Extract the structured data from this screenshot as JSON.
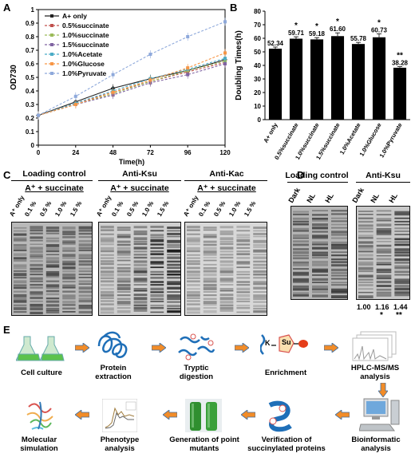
{
  "panels": [
    "A",
    "B",
    "C",
    "D",
    "E"
  ],
  "chart_data": [
    {
      "type": "line",
      "ylabel": "OD730",
      "xlabel": "Time(h)",
      "x": [
        0,
        24,
        48,
        72,
        96,
        120
      ],
      "xlim": [
        0,
        120
      ],
      "ylim": [
        0,
        1.0
      ],
      "yticks": [
        "0",
        "0.1",
        "0.2",
        "0.3",
        "0.4",
        "0.5",
        "0.6",
        "0.7",
        "0.8",
        "0.9",
        "1"
      ],
      "xticks": [
        "0",
        "24",
        "48",
        "72",
        "96",
        "120"
      ],
      "legend_position": "top-left",
      "series": [
        {
          "name": "A+ only",
          "color": "#222222",
          "values": [
            0.22,
            0.32,
            0.42,
            0.49,
            0.55,
            0.63
          ]
        },
        {
          "name": "0.5%succinate",
          "color": "#c0504d",
          "values": [
            0.22,
            0.31,
            0.39,
            0.47,
            0.54,
            0.61
          ]
        },
        {
          "name": "1.0%succinate",
          "color": "#9bbb59",
          "values": [
            0.22,
            0.3,
            0.38,
            0.47,
            0.55,
            0.62
          ]
        },
        {
          "name": "1.5%succinate",
          "color": "#8064a2",
          "values": [
            0.22,
            0.3,
            0.37,
            0.46,
            0.52,
            0.6
          ]
        },
        {
          "name": "1.0%Acetate",
          "color": "#4bacc6",
          "values": [
            0.22,
            0.31,
            0.4,
            0.49,
            0.56,
            0.64
          ]
        },
        {
          "name": "1.0%Glucose",
          "color": "#f79646",
          "values": [
            0.22,
            0.3,
            0.39,
            0.48,
            0.57,
            0.68
          ]
        },
        {
          "name": "1.0%Pyruvate",
          "color": "#8ea9db",
          "values": [
            0.22,
            0.36,
            0.52,
            0.67,
            0.8,
            0.91
          ]
        }
      ]
    },
    {
      "type": "bar",
      "ylabel": "Doubling Times(h)",
      "ylim": [
        0,
        80
      ],
      "yticks": [
        "0",
        "10",
        "20",
        "30",
        "40",
        "50",
        "60",
        "70",
        "80"
      ],
      "categories": [
        "A+ only",
        "0.5%succinate",
        "1.0%succinate",
        "1.5%succinate",
        "1.0%Acetate",
        "1.0%Glucose",
        "1.0%Pyruvate"
      ],
      "values": [
        52.34,
        59.71,
        59.18,
        61.6,
        55.78,
        60.73,
        38.28
      ],
      "labels": [
        "52.34",
        "59.71",
        "59.18",
        "61.60",
        "55.78",
        "60.73",
        "38.28"
      ],
      "errors": [
        1.2,
        1.4,
        1.3,
        2.4,
        1.2,
        2.6,
        0.8
      ],
      "significance": [
        "",
        "*",
        "*",
        "*",
        "",
        "*",
        "**"
      ],
      "bar_color": "#000000"
    }
  ],
  "panel_c": {
    "blots": [
      {
        "title": "Loading control",
        "subtitle": "A⁺ + succinate"
      },
      {
        "title": "Anti-Ksu",
        "subtitle": "A⁺ + succinate"
      },
      {
        "title": "Anti-Kac",
        "subtitle": "A⁺ + succinate"
      }
    ],
    "lanes": [
      "A⁺ only",
      "0.1 %",
      "0.5 %",
      "1.0 %",
      "1.5 %"
    ]
  },
  "panel_d": {
    "blots": [
      {
        "title": "Loading control"
      },
      {
        "title": "Anti-Ksu"
      }
    ],
    "lanes": [
      "Dark",
      "NL",
      "HL"
    ],
    "quant": [
      "1.00",
      "1.16",
      "1.44"
    ],
    "quant_sig": [
      "",
      "*",
      "**"
    ]
  },
  "panel_e": {
    "row1": [
      "Cell culture",
      "Protein extraction",
      "Tryptic digestion",
      "Enrichment",
      "HPLC-MS/MS analysis"
    ],
    "row2": [
      "Molecular simulation",
      "Phenotype analysis",
      "Generation of point mutants",
      "Verification of succinylated proteins",
      "Bioinformatic analysis"
    ],
    "enrichment_labels": {
      "k": "K",
      "su": "Su"
    }
  }
}
